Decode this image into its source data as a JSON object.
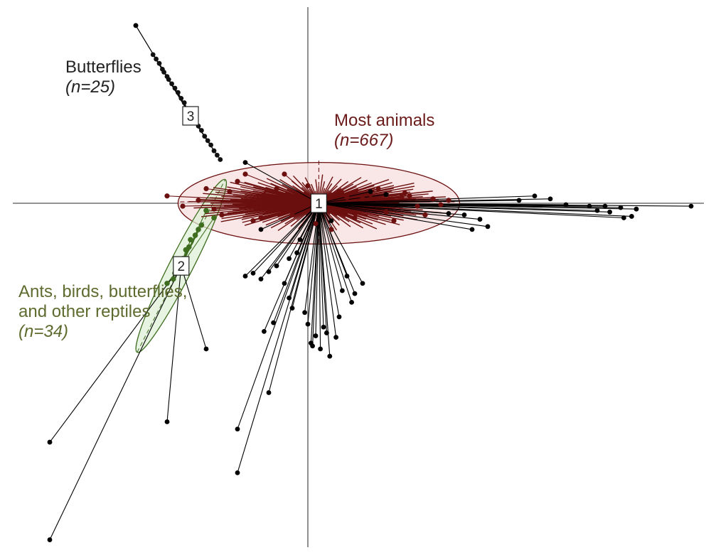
{
  "chart_data": {
    "type": "scatter",
    "title": "",
    "xlabel": "",
    "ylabel": "",
    "axes": {
      "cross_at": [
        0,
        0
      ],
      "xlim": [
        -2.05,
        2.6
      ],
      "ylim": [
        -2.4,
        1.25
      ],
      "grid": false,
      "ticks": false
    },
    "colors": {
      "most_animals": "#6b0f0f",
      "ants_birds": "#3f6d20",
      "butterflies": "#111111",
      "outlier": "#000000"
    },
    "clusters": [
      {
        "id": "1",
        "label": "Most animals",
        "count_label": "(n=667)",
        "centroid": [
          0.07,
          0.0
        ],
        "ellipse": {
          "rx": 0.9,
          "ry": 0.28,
          "angle_deg": 0
        },
        "color": "#6b0f0f",
        "fill": "#f7dcdc"
      },
      {
        "id": "2",
        "label_lines": [
          "Ants, birds, butterflies,",
          "and other reptiles"
        ],
        "count_label": "(n=34)",
        "centroid": [
          -0.81,
          -0.43
        ],
        "ellipse": {
          "rx": 0.62,
          "ry": 0.08,
          "angle_deg": 63
        },
        "color": "#3f6d20",
        "fill": "#dcefd4"
      },
      {
        "id": "3",
        "label": "Butterflies",
        "count_label": "(n=25)",
        "centroid": [
          -0.75,
          0.6
        ],
        "color": "#111111"
      }
    ],
    "points": {
      "outliers": [
        [
          2.45,
          -0.02
        ],
        [
          2.1,
          -0.04
        ],
        [
          2.0,
          -0.03
        ],
        [
          1.9,
          -0.02
        ],
        [
          1.85,
          -0.05
        ],
        [
          1.8,
          -0.02
        ],
        [
          1.65,
          -0.01
        ],
        [
          1.55,
          0.03
        ],
        [
          1.45,
          0.05
        ],
        [
          1.35,
          0.02
        ],
        [
          2.07,
          -0.09
        ],
        [
          2.02,
          -0.1
        ],
        [
          1.93,
          -0.06
        ],
        [
          1.1,
          -0.11
        ],
        [
          1.15,
          -0.16
        ],
        [
          1.05,
          -0.18
        ],
        [
          1.0,
          -0.08
        ],
        [
          0.9,
          -0.07
        ],
        [
          0.25,
          -0.5
        ],
        [
          0.3,
          -0.62
        ],
        [
          0.2,
          -0.78
        ],
        [
          0.1,
          -0.85
        ],
        [
          0.05,
          -0.91
        ],
        [
          0.02,
          -0.96
        ],
        [
          0.12,
          -0.89
        ],
        [
          0.18,
          -0.92
        ],
        [
          0.0,
          -0.83
        ],
        [
          0.03,
          -0.98
        ],
        [
          0.08,
          -1.0
        ],
        [
          0.14,
          -1.05
        ],
        [
          0.35,
          -0.55
        ],
        [
          0.28,
          -0.68
        ],
        [
          -0.02,
          -0.75
        ],
        [
          0.22,
          -0.6
        ],
        [
          -0.2,
          -0.43
        ],
        [
          -0.25,
          -0.47
        ],
        [
          -0.3,
          -0.52
        ],
        [
          -0.15,
          -0.55
        ],
        [
          -0.12,
          -0.65
        ],
        [
          -0.1,
          -0.72
        ],
        [
          -0.35,
          -0.48
        ],
        [
          -0.4,
          -0.5
        ],
        [
          -0.22,
          -0.82
        ],
        [
          -0.28,
          -0.88
        ],
        [
          -0.07,
          -0.34
        ],
        [
          -0.12,
          -0.38
        ],
        [
          -0.3,
          -0.18
        ],
        [
          -0.05,
          -0.25
        ],
        [
          0.15,
          -0.12
        ],
        [
          0.4,
          0.08
        ],
        [
          0.5,
          0.06
        ],
        [
          -0.25,
          -1.3
        ],
        [
          -0.45,
          -1.55
        ],
        [
          -0.65,
          -1.0
        ],
        [
          -0.9,
          -1.5
        ],
        [
          -0.45,
          -1.85
        ],
        [
          -1.65,
          -1.64
        ],
        [
          -1.65,
          -2.31
        ],
        [
          -1.1,
          1.22
        ],
        [
          -0.4,
          0.28
        ]
      ],
      "most_animals_sample": [
        [
          -0.9,
          0.05
        ],
        [
          -0.7,
          0.02
        ],
        [
          -0.6,
          -0.04
        ],
        [
          -0.5,
          0.08
        ],
        [
          -0.4,
          0.2
        ],
        [
          -0.3,
          -0.1
        ],
        [
          -0.2,
          0.1
        ],
        [
          -0.1,
          -0.08
        ],
        [
          0.0,
          0.12
        ],
        [
          0.1,
          -0.05
        ],
        [
          0.2,
          0.08
        ],
        [
          0.3,
          -0.1
        ],
        [
          0.4,
          0.06
        ],
        [
          0.5,
          -0.06
        ],
        [
          0.6,
          0.04
        ],
        [
          0.7,
          -0.02
        ],
        [
          0.8,
          0.03
        ],
        [
          0.85,
          -0.01
        ],
        [
          -0.55,
          -0.08
        ],
        [
          -0.35,
          -0.12
        ],
        [
          -0.15,
          0.2
        ],
        [
          0.05,
          -0.14
        ],
        [
          0.25,
          0.04
        ],
        [
          0.45,
          0.1
        ],
        [
          0.65,
          0.05
        ],
        [
          0.75,
          -0.08
        ],
        [
          0.55,
          -0.12
        ],
        [
          0.35,
          0.03
        ],
        [
          0.15,
          -0.18
        ],
        [
          -0.45,
          0.15
        ],
        [
          -0.8,
          -0.02
        ],
        [
          -0.65,
          0.1
        ],
        [
          0.9,
          0.02
        ],
        [
          0.62,
          0.07
        ],
        [
          -0.28,
          0.06
        ],
        [
          0.08,
          0.02
        ]
      ],
      "ants_birds_sample": [
        [
          -0.7,
          -0.18
        ],
        [
          -0.75,
          -0.25
        ],
        [
          -0.78,
          -0.32
        ],
        [
          -0.8,
          -0.38
        ],
        [
          -0.83,
          -0.45
        ],
        [
          -0.86,
          -0.52
        ],
        [
          -0.9,
          -0.55
        ],
        [
          -0.72,
          -0.22
        ],
        [
          -0.76,
          -0.3
        ],
        [
          -0.85,
          -0.48
        ],
        [
          -0.6,
          -0.1
        ],
        [
          -0.65,
          -0.05
        ],
        [
          -0.68,
          -0.15
        ]
      ],
      "butterflies": [
        [
          -1.1,
          1.22
        ],
        [
          -0.99,
          1.02
        ],
        [
          -0.97,
          0.99
        ],
        [
          -0.95,
          0.96
        ],
        [
          -0.93,
          0.92
        ],
        [
          -0.92,
          0.9
        ],
        [
          -0.9,
          0.87
        ],
        [
          -0.89,
          0.85
        ],
        [
          -0.87,
          0.82
        ],
        [
          -0.85,
          0.79
        ],
        [
          -0.83,
          0.76
        ],
        [
          -0.81,
          0.72
        ],
        [
          -0.79,
          0.69
        ],
        [
          -0.77,
          0.65
        ],
        [
          -0.76,
          0.63
        ],
        [
          -0.74,
          0.6
        ],
        [
          -0.72,
          0.57
        ],
        [
          -0.7,
          0.53
        ],
        [
          -0.68,
          0.5
        ],
        [
          -0.66,
          0.46
        ],
        [
          -0.64,
          0.43
        ],
        [
          -0.62,
          0.4
        ],
        [
          -0.6,
          0.36
        ],
        [
          -0.58,
          0.33
        ],
        [
          -0.56,
          0.3
        ]
      ]
    }
  }
}
